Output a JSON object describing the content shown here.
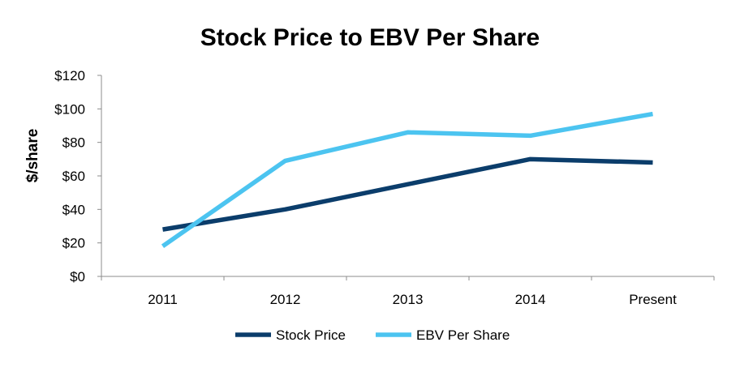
{
  "chart_data": {
    "type": "line",
    "title": "Stock Price to EBV Per Share",
    "xlabel": "",
    "ylabel": "$/share",
    "categories": [
      "2011",
      "2012",
      "2013",
      "2014",
      "Present"
    ],
    "ylim": [
      0,
      120
    ],
    "yticks": [
      0,
      20,
      40,
      60,
      80,
      100,
      120
    ],
    "ytick_labels": [
      "$0",
      "$20",
      "$40",
      "$60",
      "$80",
      "$100",
      "$120"
    ],
    "grid": false,
    "legend_position": "bottom",
    "series": [
      {
        "name": "Stock Price",
        "color": "#0b3d6b",
        "values": [
          28,
          40,
          55,
          70,
          68
        ]
      },
      {
        "name": "EBV Per Share",
        "color": "#4cc4f0",
        "values": [
          18,
          69,
          86,
          84,
          97
        ]
      }
    ]
  }
}
